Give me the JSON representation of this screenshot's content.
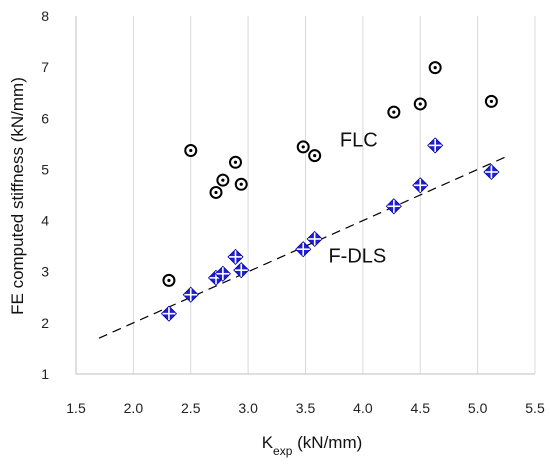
{
  "chart_data": {
    "type": "scatter",
    "xlabel": "K",
    "xlabel_sub": "exp",
    "xlabel_unit": " (kN/mm)",
    "ylabel": "FE computed stiffness (kN/mm)",
    "xlim": [
      1.5,
      5.5
    ],
    "ylim": [
      1,
      8
    ],
    "x_ticks": [
      1.5,
      2.0,
      2.5,
      3.0,
      3.5,
      4.0,
      4.5,
      5.0,
      5.5
    ],
    "x_tick_labels": [
      "1.5",
      "2.0",
      "2.5",
      "3.0",
      "3.5",
      "4.0",
      "4.5",
      "5.0",
      "5.5"
    ],
    "y_ticks": [
      1,
      2,
      3,
      4,
      5,
      6,
      7,
      8
    ],
    "y_tick_labels": [
      "1",
      "2",
      "3",
      "4",
      "5",
      "6",
      "7",
      "8"
    ],
    "grid": "vertical",
    "series": [
      {
        "name": "FLC",
        "marker": "circle-dot",
        "color": "#000000",
        "points": [
          {
            "x": 2.31,
            "y": 2.83
          },
          {
            "x": 2.5,
            "y": 5.37
          },
          {
            "x": 2.72,
            "y": 4.55
          },
          {
            "x": 2.78,
            "y": 4.79
          },
          {
            "x": 2.89,
            "y": 5.14
          },
          {
            "x": 2.94,
            "y": 4.71
          },
          {
            "x": 3.48,
            "y": 5.44
          },
          {
            "x": 3.58,
            "y": 5.27
          },
          {
            "x": 4.27,
            "y": 6.12
          },
          {
            "x": 4.5,
            "y": 6.28
          },
          {
            "x": 4.63,
            "y": 6.99
          },
          {
            "x": 5.12,
            "y": 6.33
          }
        ]
      },
      {
        "name": "F-DLS",
        "marker": "diamond-cross",
        "color": "#1f1fd6",
        "points": [
          {
            "x": 2.31,
            "y": 2.18
          },
          {
            "x": 2.5,
            "y": 2.55
          },
          {
            "x": 2.72,
            "y": 2.88
          },
          {
            "x": 2.78,
            "y": 2.96
          },
          {
            "x": 2.89,
            "y": 3.29
          },
          {
            "x": 2.94,
            "y": 3.03
          },
          {
            "x": 3.48,
            "y": 3.44
          },
          {
            "x": 3.58,
            "y": 3.64
          },
          {
            "x": 4.27,
            "y": 4.28
          },
          {
            "x": 4.5,
            "y": 4.69
          },
          {
            "x": 4.63,
            "y": 5.47
          },
          {
            "x": 5.12,
            "y": 4.95
          }
        ]
      }
    ],
    "trendline": {
      "style": "dashed",
      "color": "#000000",
      "from": {
        "x": 1.7,
        "y": 1.7
      },
      "to": {
        "x": 5.25,
        "y": 5.25
      }
    },
    "annotations": [
      {
        "text": "FLC",
        "x": 3.8,
        "y": 5.45
      },
      {
        "text": "F-DLS",
        "x": 3.7,
        "y": 3.18
      }
    ]
  }
}
